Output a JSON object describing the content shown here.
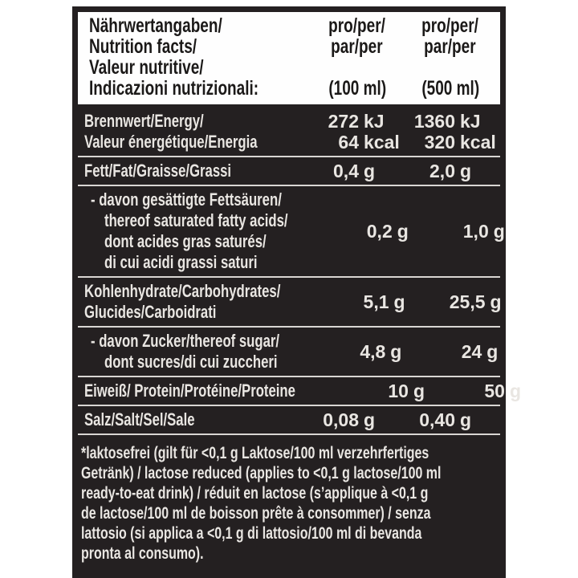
{
  "colors": {
    "page_bg": "#ffffff",
    "label_bg": "#242021",
    "header_bg": "#fefefe",
    "header_text": "#1b1918",
    "row_text": "#e9e6e2",
    "line_color": "#d9d6d3"
  },
  "label": {
    "header": {
      "title_lines": [
        "Nährwertangaben/",
        "Nutrition facts/",
        "Valeur nutritive/",
        "Indicazioni nutrizionali:"
      ],
      "col1": {
        "per_lines": [
          "pro/per/",
          "par/per"
        ],
        "amount": "(100 ml)"
      },
      "col2": {
        "per_lines": [
          "pro/per/",
          "par/per"
        ],
        "amount": "(500 ml)"
      }
    },
    "rows": [
      {
        "name_lines": [
          "Brennwert/Energy/",
          "Valeur énergétique/Energia"
        ],
        "per100": [
          {
            "num": "272",
            "unit": "kJ"
          },
          {
            "num": "64",
            "unit": "kcal"
          }
        ],
        "per500": [
          {
            "num": "1360",
            "unit": "kJ"
          },
          {
            "num": "320",
            "unit": "kcal"
          }
        ]
      },
      {
        "name_lines": [
          "Fett/Fat/Graisse/Grassi"
        ],
        "per100": [
          {
            "num": "0,4",
            "unit": "g"
          }
        ],
        "per500": [
          {
            "num": "2,0",
            "unit": "g"
          }
        ]
      },
      {
        "name_lines": [
          "- davon gesättigte Fettsäuren/",
          "thereof saturated fatty acids/",
          "dont acides gras saturés/",
          "di cui acidi grassi saturi"
        ],
        "per100": [
          {
            "num": "0,2",
            "unit": "g"
          }
        ],
        "per500": [
          {
            "num": "1,0",
            "unit": "g"
          }
        ]
      },
      {
        "name_lines": [
          "Kohlenhydrate/Carbohydrates/",
          "Glucides/Carboidrati"
        ],
        "per100": [
          {
            "num": "5,1",
            "unit": "g"
          }
        ],
        "per500": [
          {
            "num": "25,5",
            "unit": "g"
          }
        ]
      },
      {
        "name_lines": [
          "- davon Zucker/thereof sugar/",
          "dont sucres/di cui zuccheri"
        ],
        "per100": [
          {
            "num": "4,8",
            "unit": "g"
          }
        ],
        "per500": [
          {
            "num": "24",
            "unit": "g"
          }
        ]
      },
      {
        "name_lines": [
          "Eiweiß/ Protein/Protéine/Proteine"
        ],
        "per100": [
          {
            "num": "10",
            "unit": "g"
          }
        ],
        "per500": [
          {
            "num": "50",
            "unit": "g"
          }
        ]
      },
      {
        "name_lines": [
          "Salz/Salt/Sel/Sale"
        ],
        "per100": [
          {
            "num": "0,08",
            "unit": "g"
          }
        ],
        "per500": [
          {
            "num": "0,40",
            "unit": "g"
          }
        ]
      }
    ],
    "footnote_lines": [
      "*laktosefrei (gilt für <0,1 g Laktose/100 ml verzehrfertiges",
      "Getränk) / lactose reduced (applies to <0,1 g lactose/100 ml",
      "ready-to-eat drink) / réduit en lactose (s’applique à <0,1 g",
      "de lactose/100 ml de boisson prête à consommer) / senza",
      "lattosio (si applica a <0,1 g di lattosio/100 ml di bevanda",
      "pronta al consumo)."
    ]
  }
}
